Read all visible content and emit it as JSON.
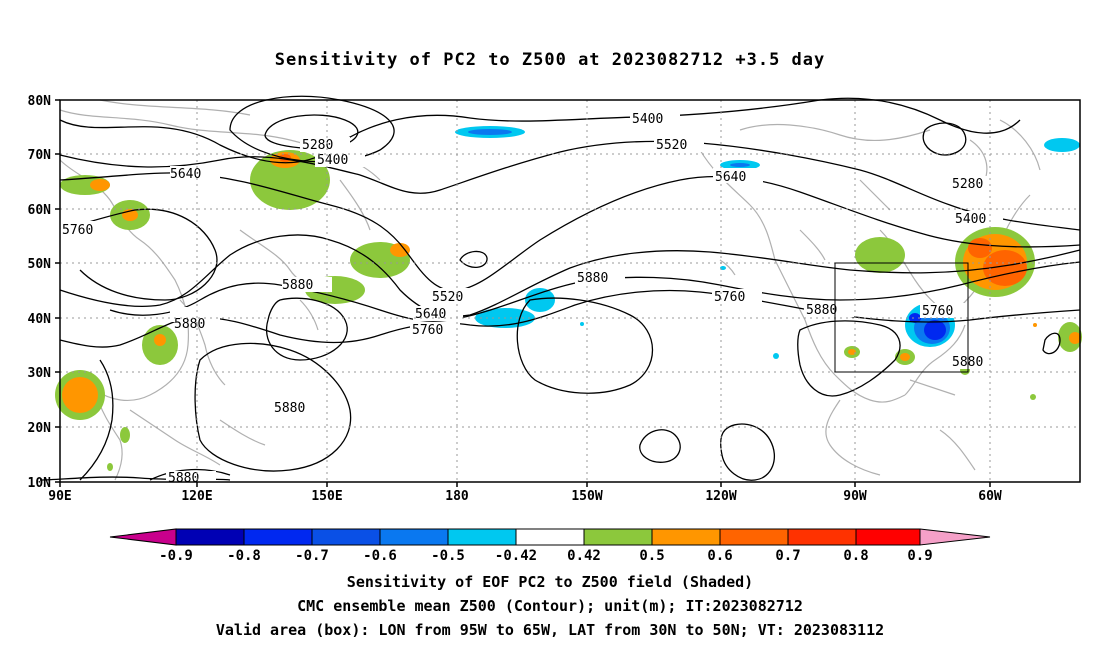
{
  "title": "Sensitivity of PC2 to Z500 at 2023082712 +3.5 day",
  "lat_labels": [
    "80N",
    "70N",
    "60N",
    "50N",
    "40N",
    "30N",
    "20N",
    "10N"
  ],
  "lon_labels": [
    "90E",
    "120E",
    "150E",
    "180",
    "150W",
    "120W",
    "90W",
    "60W"
  ],
  "contour_labels": [
    "5400",
    "5280",
    "5400",
    "5640",
    "5760",
    "5520",
    "5640",
    "5880",
    "5520",
    "5640",
    "5760",
    "5880",
    "5760",
    "5880",
    "5760",
    "5400",
    "5280",
    "5880",
    "5880",
    "5880",
    "5880"
  ],
  "colorbar": {
    "ticks": [
      "-0.9",
      "-0.8",
      "-0.7",
      "-0.6",
      "-0.5",
      "-0.42",
      "0.42",
      "0.5",
      "0.6",
      "0.7",
      "0.8",
      "0.9"
    ],
    "colors": [
      "#c8008c",
      "#0000b4",
      "#0028f0",
      "#0a50e6",
      "#0a78f0",
      "#00c8f0",
      "#ffffff",
      "#8cc83c",
      "#ff9600",
      "#ff6400",
      "#ff3200",
      "#ff0000",
      "#f5a0c8"
    ]
  },
  "valid_box": {
    "lon_range": [
      "95W",
      "65W"
    ],
    "lat_range": [
      "30N",
      "50N"
    ]
  },
  "captions": [
    "Sensitivity of EOF PC2 to Z500 field (Shaded)",
    "CMC ensemble mean Z500 (Contour); unit(m); IT:2023082712",
    "Valid area (box): LON from 95W to 65W, LAT from 30N to 50N; VT: 2023083112"
  ]
}
